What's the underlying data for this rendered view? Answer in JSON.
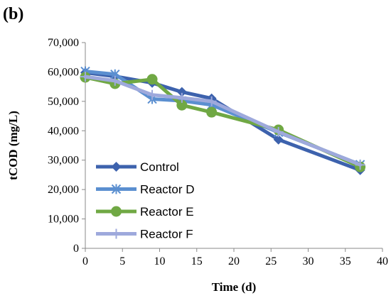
{
  "panel_label": "(b)",
  "chart_data": {
    "type": "line",
    "xlabel": "Time (d)",
    "ylabel": "tCOD (mg/L)",
    "xlim": [
      0,
      40
    ],
    "ylim": [
      0,
      70000
    ],
    "x_ticks": [
      "0",
      "5",
      "10",
      "15",
      "20",
      "25",
      "30",
      "35",
      "40"
    ],
    "y_ticks": [
      "0",
      "10,000",
      "20,000",
      "30,000",
      "40,000",
      "50,000",
      "60,000",
      "70,000"
    ],
    "x_tick_values": [
      0,
      5,
      10,
      15,
      20,
      25,
      30,
      35,
      40
    ],
    "y_tick_values": [
      0,
      10000,
      20000,
      30000,
      40000,
      50000,
      60000,
      70000
    ],
    "grid": false,
    "legend_position": "bottom-left",
    "series": [
      {
        "name": "Control",
        "color": "#3d62ad",
        "marker": "diamond",
        "x": [
          0,
          4,
          9,
          13,
          17,
          26,
          37
        ],
        "y": [
          59800,
          58500,
          56300,
          53200,
          51000,
          37000,
          26600
        ]
      },
      {
        "name": "Reactor D",
        "color": "#5b8fd0",
        "marker": "asterisk",
        "x": [
          0,
          4,
          9,
          13,
          17,
          26,
          37
        ],
        "y": [
          60200,
          59200,
          50800,
          50200,
          48800,
          39500,
          28500
        ]
      },
      {
        "name": "Reactor E",
        "color": "#70a844",
        "marker": "circle",
        "x": [
          0,
          4,
          9,
          13,
          17,
          26,
          37
        ],
        "y": [
          58200,
          56000,
          57500,
          48700,
          46300,
          40300,
          27700
        ]
      },
      {
        "name": "Reactor F",
        "color": "#9ea9dc",
        "marker": "plus",
        "x": [
          0,
          4,
          9,
          13,
          17,
          26,
          37
        ],
        "y": [
          58400,
          57000,
          52200,
          51200,
          50000,
          39600,
          28400
        ]
      }
    ]
  }
}
